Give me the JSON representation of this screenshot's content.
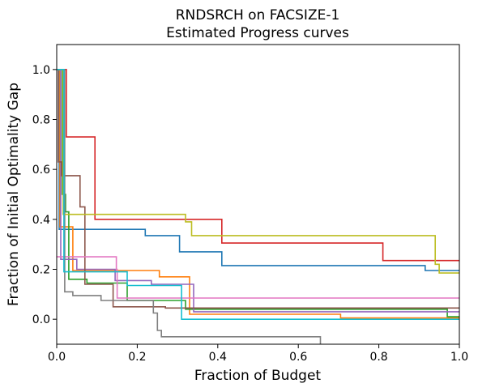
{
  "chart_data": {
    "type": "line",
    "step": true,
    "title_lines": [
      "RNDSRCH on FACSIZE-1",
      "Estimated Progress curves"
    ],
    "xlabel": "Fraction of Budget",
    "ylabel": "Fraction of Initial Optimality Gap",
    "xlim": [
      0,
      1
    ],
    "ylim": [
      -0.1,
      1.1
    ],
    "xticks": [
      0.0,
      0.2,
      0.4,
      0.6,
      0.8,
      1.0
    ],
    "xtick_labels": [
      "0.0",
      "0.2",
      "0.4",
      "0.6",
      "0.8",
      "1.0"
    ],
    "yticks": [
      0.0,
      0.2,
      0.4,
      0.6,
      0.8,
      1.0
    ],
    "ytick_labels": [
      "0.0",
      "0.2",
      "0.4",
      "0.6",
      "0.8",
      "1.0"
    ],
    "grid": false,
    "legend": false,
    "series": [
      {
        "color": "#1f77b4",
        "x": [
          0,
          0.006,
          0.006,
          0.22,
          0.22,
          0.305,
          0.305,
          0.41,
          0.41,
          0.915,
          0.915,
          1.0
        ],
        "y": [
          1.0,
          1.0,
          0.36,
          0.36,
          0.335,
          0.335,
          0.27,
          0.27,
          0.215,
          0.215,
          0.195,
          0.195
        ]
      },
      {
        "color": "#ff7f0e",
        "x": [
          0,
          0.008,
          0.008,
          0.04,
          0.04,
          0.255,
          0.255,
          0.33,
          0.33,
          0.705,
          0.705,
          1.0
        ],
        "y": [
          1.0,
          1.0,
          0.37,
          0.37,
          0.195,
          0.195,
          0.17,
          0.17,
          0.02,
          0.02,
          0.005,
          0.005
        ]
      },
      {
        "color": "#2ca02c",
        "x": [
          0,
          0.014,
          0.014,
          0.022,
          0.022,
          0.03,
          0.03,
          0.075,
          0.075,
          0.175,
          0.175,
          0.32,
          0.32,
          0.97,
          0.97,
          1.0
        ],
        "y": [
          1.0,
          1.0,
          0.5,
          0.5,
          0.43,
          0.43,
          0.16,
          0.16,
          0.145,
          0.145,
          0.075,
          0.075,
          0.04,
          0.04,
          0.01,
          0.01
        ]
      },
      {
        "color": "#d62728",
        "x": [
          0,
          0.024,
          0.024,
          0.095,
          0.095,
          0.41,
          0.41,
          0.81,
          0.81,
          1.0
        ],
        "y": [
          1.0,
          1.0,
          0.73,
          0.73,
          0.4,
          0.4,
          0.305,
          0.305,
          0.235,
          0.235
        ]
      },
      {
        "color": "#9467bd",
        "x": [
          0,
          0.01,
          0.01,
          0.05,
          0.05,
          0.145,
          0.145,
          0.235,
          0.235,
          0.34,
          0.34,
          1.0
        ],
        "y": [
          1.0,
          1.0,
          0.24,
          0.24,
          0.2,
          0.2,
          0.155,
          0.155,
          0.14,
          0.14,
          0.03,
          0.03
        ]
      },
      {
        "color": "#8c564b",
        "x": [
          0,
          0.004,
          0.004,
          0.012,
          0.012,
          0.058,
          0.058,
          0.07,
          0.07,
          0.14,
          0.14,
          0.27,
          0.27,
          1.0
        ],
        "y": [
          1.0,
          1.0,
          0.63,
          0.63,
          0.575,
          0.575,
          0.45,
          0.45,
          0.14,
          0.14,
          0.05,
          0.05,
          0.045,
          0.045
        ]
      },
      {
        "color": "#e377c2",
        "x": [
          0,
          0.148,
          0.148,
          0.15,
          0.15,
          1.0
        ],
        "y": [
          0.25,
          0.25,
          0.2,
          0.2,
          0.085,
          0.085
        ]
      },
      {
        "color": "#7f7f7f",
        "x": [
          0,
          0.02,
          0.02,
          0.04,
          0.04,
          0.11,
          0.11,
          0.24,
          0.24,
          0.25,
          0.25,
          0.26,
          0.26,
          0.655,
          0.655
        ],
        "y": [
          1.0,
          1.0,
          0.11,
          0.11,
          0.095,
          0.095,
          0.075,
          0.075,
          0.025,
          0.025,
          -0.045,
          -0.045,
          -0.07,
          -0.07,
          -0.1
        ]
      },
      {
        "color": "#bcbd22",
        "x": [
          0,
          0.016,
          0.016,
          0.32,
          0.32,
          0.335,
          0.335,
          0.94,
          0.94,
          0.95,
          0.95,
          1.0
        ],
        "y": [
          1.0,
          1.0,
          0.42,
          0.42,
          0.39,
          0.39,
          0.335,
          0.335,
          0.22,
          0.22,
          0.185,
          0.185
        ]
      },
      {
        "color": "#17becf",
        "x": [
          0,
          0.018,
          0.018,
          0.175,
          0.175,
          0.31,
          0.31,
          1.0
        ],
        "y": [
          1.0,
          1.0,
          0.19,
          0.19,
          0.135,
          0.135,
          0.0,
          0.0
        ]
      }
    ]
  }
}
